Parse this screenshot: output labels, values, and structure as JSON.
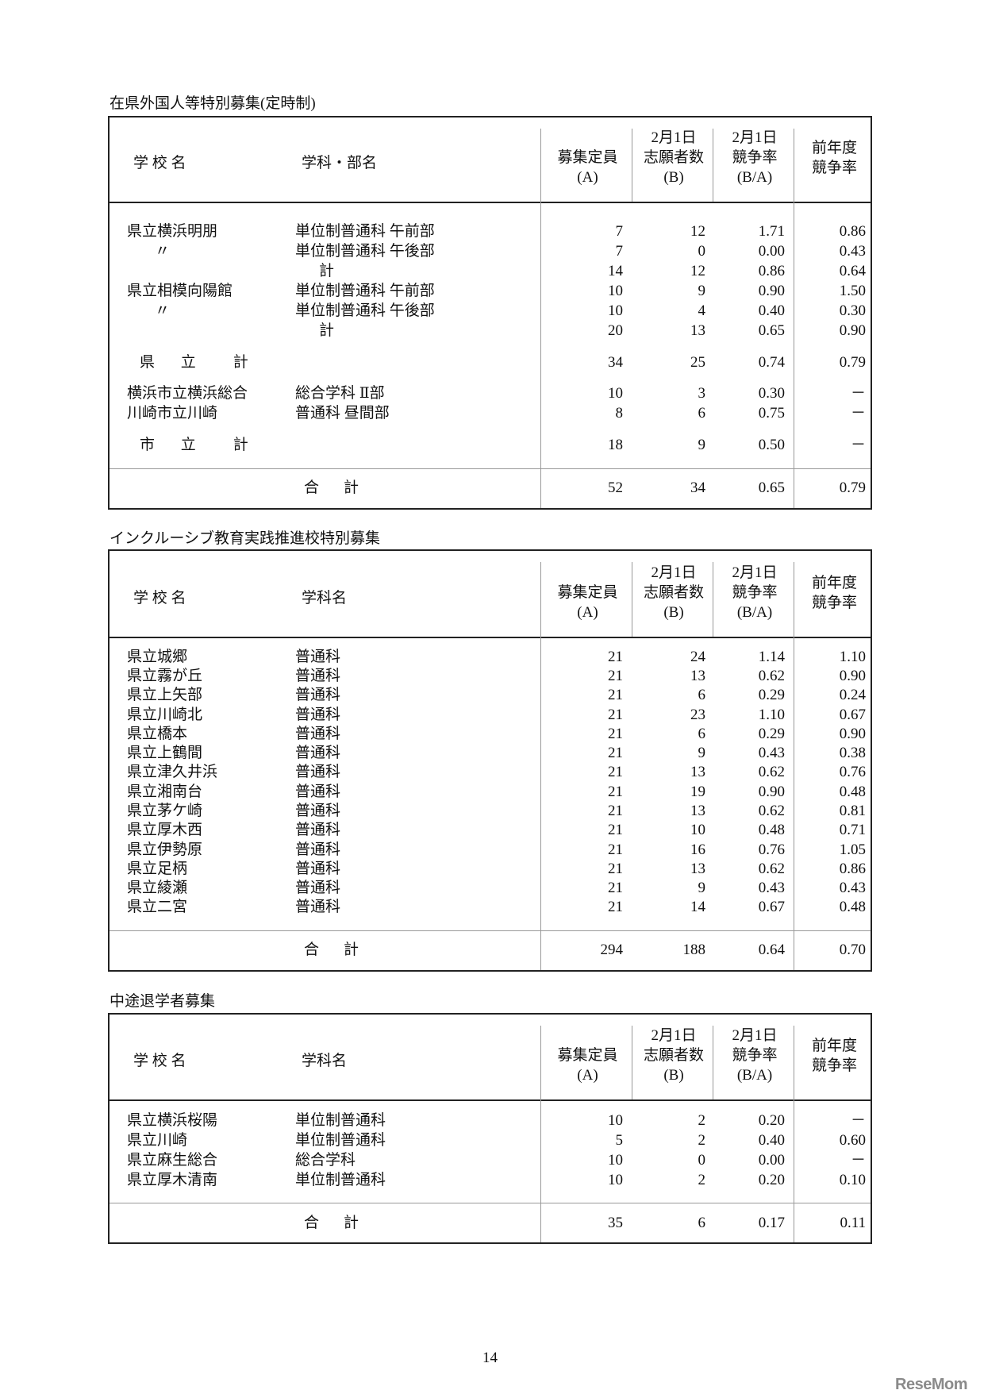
{
  "header_labels": {
    "school": "学 校 名",
    "col_a": [
      "募集定員",
      "(A)"
    ],
    "col_b": [
      "2月1日",
      "志願者数",
      "(B)"
    ],
    "col_c": [
      "2月1日",
      "競争率",
      "(B/A)"
    ],
    "col_d": [
      "前年度",
      "競争率"
    ]
  },
  "tables": [
    {
      "title": "在県外国人等特別募集(定時制)",
      "dept_header": "学科・部名",
      "rows": [
        {
          "name": "県立横浜明朋",
          "dept": "単位制普通科 午前部",
          "a": "7",
          "b": "12",
          "c": "1.71",
          "d": "0.86"
        },
        {
          "name": "〃",
          "dept": "単位制普通科 午後部",
          "a": "7",
          "b": "0",
          "c": "0.00",
          "d": "0.43"
        },
        {
          "name": "",
          "dept": "計",
          "a": "14",
          "b": "12",
          "c": "0.86",
          "d": "0.64"
        },
        {
          "name": "県立相模向陽館",
          "dept": "単位制普通科 午前部",
          "a": "10",
          "b": "9",
          "c": "0.90",
          "d": "1.50"
        },
        {
          "name": "〃",
          "dept": "単位制普通科 午後部",
          "a": "10",
          "b": "4",
          "c": "0.40",
          "d": "0.30"
        },
        {
          "name": "",
          "dept": "計",
          "a": "20",
          "b": "13",
          "c": "0.65",
          "d": "0.90"
        },
        {
          "name": "県 立　計",
          "dept": "",
          "a": "34",
          "b": "25",
          "c": "0.74",
          "d": "0.79"
        },
        {
          "name": "横浜市立横浜総合",
          "dept": "総合学科 Ⅱ部",
          "a": "10",
          "b": "3",
          "c": "0.30",
          "d": "－"
        },
        {
          "name": "川崎市立川崎",
          "dept": "普通科 昼間部",
          "a": "8",
          "b": "6",
          "c": "0.75",
          "d": "－"
        },
        {
          "name": "市 立　計",
          "dept": "",
          "a": "18",
          "b": "9",
          "c": "0.50",
          "d": "－"
        }
      ],
      "total": {
        "label": "合　計",
        "a": "52",
        "b": "34",
        "c": "0.65",
        "d": "0.79"
      }
    },
    {
      "title": "インクルーシブ教育実践推進校特別募集",
      "dept_header": "学科名",
      "rows": [
        {
          "name": "県立城郷",
          "dept": "普通科",
          "a": "21",
          "b": "24",
          "c": "1.14",
          "d": "1.10"
        },
        {
          "name": "県立霧が丘",
          "dept": "普通科",
          "a": "21",
          "b": "13",
          "c": "0.62",
          "d": "0.90"
        },
        {
          "name": "県立上矢部",
          "dept": "普通科",
          "a": "21",
          "b": "6",
          "c": "0.29",
          "d": "0.24"
        },
        {
          "name": "県立川崎北",
          "dept": "普通科",
          "a": "21",
          "b": "23",
          "c": "1.10",
          "d": "0.67"
        },
        {
          "name": "県立橋本",
          "dept": "普通科",
          "a": "21",
          "b": "6",
          "c": "0.29",
          "d": "0.90"
        },
        {
          "name": "県立上鶴間",
          "dept": "普通科",
          "a": "21",
          "b": "9",
          "c": "0.43",
          "d": "0.38"
        },
        {
          "name": "県立津久井浜",
          "dept": "普通科",
          "a": "21",
          "b": "13",
          "c": "0.62",
          "d": "0.76"
        },
        {
          "name": "県立湘南台",
          "dept": "普通科",
          "a": "21",
          "b": "19",
          "c": "0.90",
          "d": "0.48"
        },
        {
          "name": "県立茅ケ崎",
          "dept": "普通科",
          "a": "21",
          "b": "13",
          "c": "0.62",
          "d": "0.81"
        },
        {
          "name": "県立厚木西",
          "dept": "普通科",
          "a": "21",
          "b": "10",
          "c": "0.48",
          "d": "0.71"
        },
        {
          "name": "県立伊勢原",
          "dept": "普通科",
          "a": "21",
          "b": "16",
          "c": "0.76",
          "d": "1.05"
        },
        {
          "name": "県立足柄",
          "dept": "普通科",
          "a": "21",
          "b": "13",
          "c": "0.62",
          "d": "0.86"
        },
        {
          "name": "県立綾瀬",
          "dept": "普通科",
          "a": "21",
          "b": "9",
          "c": "0.43",
          "d": "0.43"
        },
        {
          "name": "県立二宮",
          "dept": "普通科",
          "a": "21",
          "b": "14",
          "c": "0.67",
          "d": "0.48"
        }
      ],
      "total": {
        "label": "合　計",
        "a": "294",
        "b": "188",
        "c": "0.64",
        "d": "0.70"
      }
    },
    {
      "title": "中途退学者募集",
      "dept_header": "学科名",
      "rows": [
        {
          "name": "県立横浜桜陽",
          "dept": "単位制普通科",
          "a": "10",
          "b": "2",
          "c": "0.20",
          "d": "－"
        },
        {
          "name": "県立川崎",
          "dept": "単位制普通科",
          "a": "5",
          "b": "2",
          "c": "0.40",
          "d": "0.60"
        },
        {
          "name": "県立麻生総合",
          "dept": "総合学科",
          "a": "10",
          "b": "0",
          "c": "0.00",
          "d": "－"
        },
        {
          "name": "県立厚木清南",
          "dept": "単位制普通科",
          "a": "10",
          "b": "2",
          "c": "0.20",
          "d": "0.10"
        }
      ],
      "total": {
        "label": "合　計",
        "a": "35",
        "b": "6",
        "c": "0.17",
        "d": "0.11"
      }
    }
  ],
  "page_number": "14",
  "logo": "ReseMom"
}
